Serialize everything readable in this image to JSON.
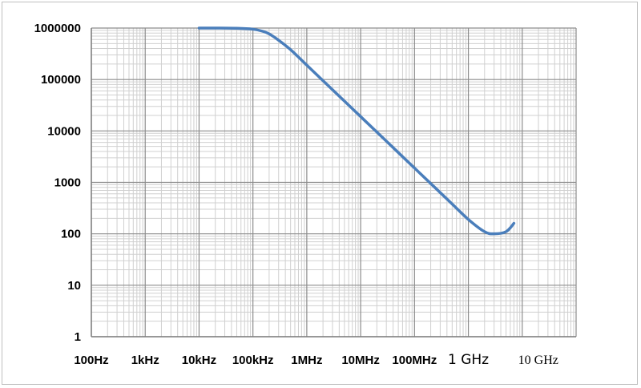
{
  "chart_data": {
    "type": "line",
    "title": "",
    "xlabel": "",
    "ylabel": "",
    "x_scale": "log",
    "y_scale": "log",
    "xlim": [
      100,
      100000000000
    ],
    "ylim": [
      1,
      1000000
    ],
    "grid": true,
    "x_tick_values": [
      100,
      1000,
      10000,
      100000,
      1000000,
      10000000,
      100000000,
      1000000000,
      10000000000
    ],
    "x_tick_labels": [
      "100Hz",
      "1kHz",
      "10kHz",
      "100kHz",
      "1MHz",
      "10MHz",
      "100MHz",
      "1 GHz",
      "10 GHz"
    ],
    "y_tick_values": [
      1,
      10,
      100,
      1000,
      10000,
      100000,
      1000000
    ],
    "y_tick_labels": [
      "1",
      "10",
      "100",
      "1000",
      "10000",
      "100000",
      "1000000"
    ],
    "series": [
      {
        "color": "#4a7ebb",
        "x": [
          10000,
          20000,
          50000,
          100000,
          150000,
          200000,
          300000,
          500000,
          1000000,
          2000000,
          5000000,
          10000000,
          20000000,
          50000000,
          100000000,
          200000000,
          500000000,
          1000000000,
          2000000000,
          3000000000,
          5000000000,
          7000000000
        ],
        "y": [
          1000000,
          1000000,
          990000,
          950000,
          870000,
          770000,
          580000,
          380000,
          190000,
          95000,
          38000,
          19000,
          9500,
          3800,
          1900,
          950,
          380,
          190,
          110,
          100,
          110,
          160
        ]
      }
    ]
  }
}
